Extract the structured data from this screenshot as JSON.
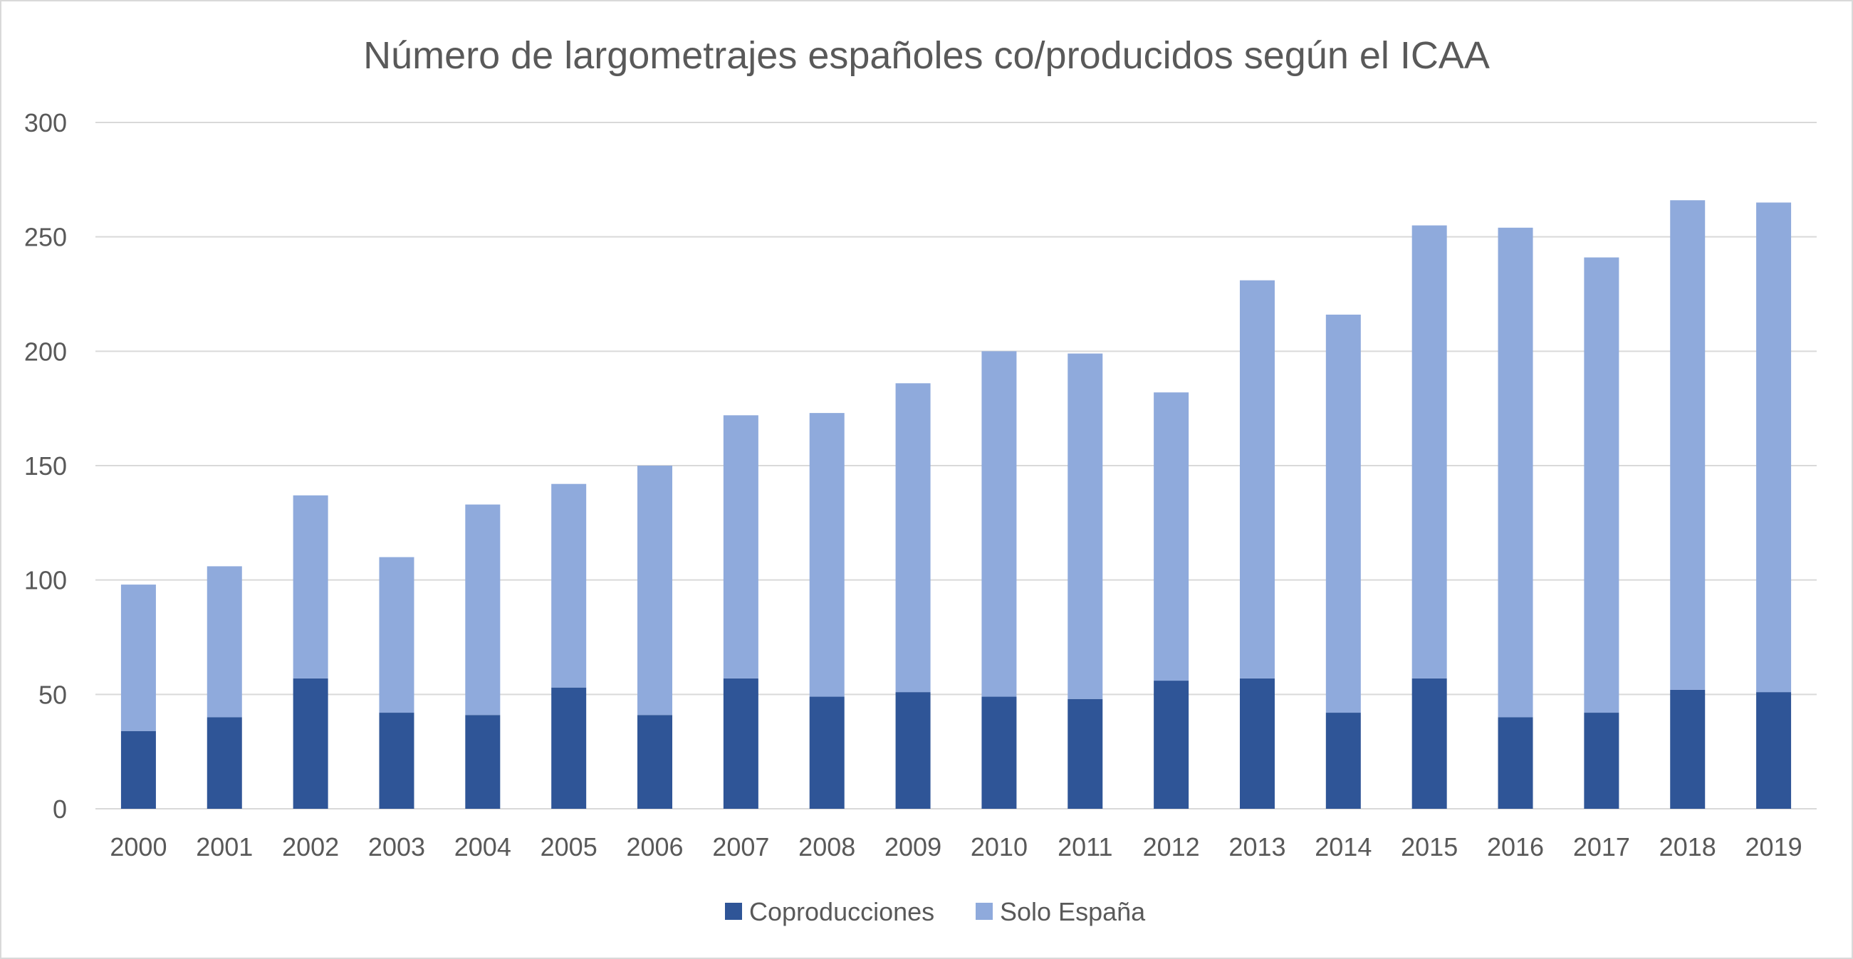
{
  "chart_data": {
    "type": "bar",
    "stacked": true,
    "title": "Número de largometrajes españoles co/producidos según el ICAA",
    "xlabel": "",
    "ylabel": "",
    "ylim": [
      0,
      300
    ],
    "yticks": [
      "0",
      "50",
      "100",
      "150",
      "200",
      "250",
      "300"
    ],
    "grid": true,
    "legend_position": "bottom",
    "categories": [
      "2000",
      "2001",
      "2002",
      "2003",
      "2004",
      "2005",
      "2006",
      "2007",
      "2008",
      "2009",
      "2010",
      "2011",
      "2012",
      "2013",
      "2014",
      "2015",
      "2016",
      "2017",
      "2018",
      "2019"
    ],
    "series": [
      {
        "name": "Coproducciones",
        "color": "#2f5597",
        "values": [
          34,
          40,
          57,
          42,
          41,
          53,
          41,
          57,
          49,
          51,
          49,
          48,
          56,
          57,
          42,
          57,
          40,
          42,
          52,
          51
        ]
      },
      {
        "name": "Solo España",
        "color": "#8faadc",
        "values": [
          64,
          66,
          80,
          68,
          92,
          89,
          109,
          115,
          124,
          135,
          151,
          151,
          126,
          174,
          174,
          198,
          214,
          199,
          214,
          214
        ]
      }
    ]
  }
}
